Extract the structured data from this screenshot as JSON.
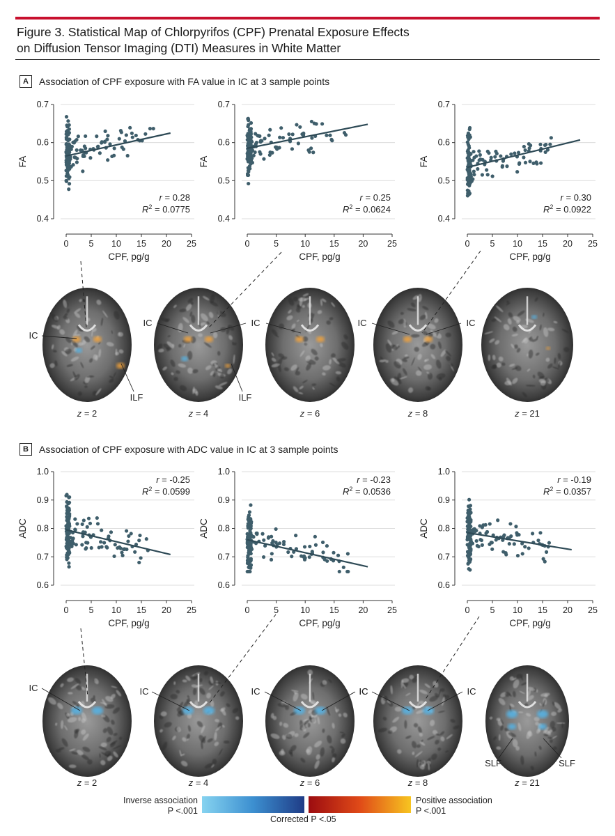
{
  "figure": {
    "title_line1": "Figure 3. Statistical Map of Chlorpyrifos (CPF) Prenatal Exposure Effects",
    "title_line2": "on Diffusion Tensor Imaging (DTI) Measures in White Matter",
    "accent_color": "#c8102e"
  },
  "panelA": {
    "label": "A",
    "heading": "Association of CPF exposure with FA value in IC at 3 sample points",
    "slices": [
      {
        "z": "2",
        "labels": [
          "IC",
          "ILF"
        ]
      },
      {
        "z": "4",
        "labels": [
          "IC",
          "ILF"
        ]
      },
      {
        "z": "6",
        "labels": [
          "IC",
          "IC"
        ]
      },
      {
        "z": "8",
        "labels": [
          "IC",
          "IC"
        ]
      },
      {
        "z": "21",
        "labels": []
      }
    ]
  },
  "panelB": {
    "label": "B",
    "heading": "Association of CPF exposure with ADC value in IC at 3 sample points",
    "slices": [
      {
        "z": "2",
        "labels": [
          "IC"
        ]
      },
      {
        "z": "4",
        "labels": [
          "IC"
        ]
      },
      {
        "z": "6",
        "labels": [
          "IC",
          "IC"
        ]
      },
      {
        "z": "8",
        "labels": [
          "IC",
          "IC"
        ]
      },
      {
        "z": "21",
        "labels": [
          "SLF",
          "SLF"
        ]
      }
    ]
  },
  "slice_prefix": "z = ",
  "legend": {
    "inverse_label": "Inverse association",
    "inverse_p": "P <.001",
    "positive_label": "Positive association",
    "positive_p": "P <.001",
    "corrected": "Corrected P <.05",
    "inverse_colors": [
      "#86d3f0",
      "#3c8fd0",
      "#1f3c86"
    ],
    "positive_colors": [
      "#9c0c10",
      "#e04a18",
      "#f7c520"
    ]
  },
  "chart_data": [
    {
      "type": "scatter",
      "panel": "A",
      "xlabel": "CPF, pg/g",
      "ylabel": "FA",
      "xlim": [
        0,
        25
      ],
      "ylim": [
        0.4,
        0.7
      ],
      "xticks": [
        0,
        5,
        10,
        15,
        20,
        25
      ],
      "yticks": [
        0.4,
        0.5,
        0.6,
        0.7
      ],
      "r": "0.28",
      "r2": "0.0775",
      "annotation_pos": "bottom-right",
      "fit": {
        "x": [
          0,
          20.8
        ],
        "y": [
          0.565,
          0.625
        ]
      },
      "seed": 11,
      "n_near0": 95,
      "n_far": 70
    },
    {
      "type": "scatter",
      "panel": "A",
      "xlabel": "CPF, pg/g",
      "ylabel": "FA",
      "xlim": [
        0,
        25
      ],
      "ylim": [
        0.4,
        0.7
      ],
      "xticks": [
        0,
        5,
        10,
        15,
        20,
        25
      ],
      "yticks": [
        0.4,
        0.5,
        0.6,
        0.7
      ],
      "r": "0.25",
      "r2": "0.0624",
      "annotation_pos": "bottom-right",
      "fit": {
        "x": [
          0,
          20.8
        ],
        "y": [
          0.585,
          0.648
        ]
      },
      "seed": 23,
      "n_near0": 95,
      "n_far": 70
    },
    {
      "type": "scatter",
      "panel": "A",
      "xlabel": "CPF, pg/g",
      "ylabel": "FA",
      "xlim": [
        0,
        25
      ],
      "ylim": [
        0.4,
        0.7
      ],
      "xticks": [
        0,
        5,
        10,
        15,
        20,
        25
      ],
      "yticks": [
        0.4,
        0.5,
        0.6,
        0.7
      ],
      "r": "0.30",
      "r2": "0.0922",
      "annotation_pos": "bottom-right",
      "fit": {
        "x": [
          0,
          22.5
        ],
        "y": [
          0.535,
          0.607
        ]
      },
      "seed": 37,
      "n_near0": 95,
      "n_far": 70
    },
    {
      "type": "scatter",
      "panel": "B",
      "xlabel": "CPF, pg/g",
      "ylabel": "ADC",
      "xlim": [
        0,
        25
      ],
      "ylim": [
        0.6,
        1.0
      ],
      "xticks": [
        0,
        5,
        10,
        15,
        20,
        25
      ],
      "yticks": [
        0.6,
        0.7,
        0.8,
        0.9,
        1.0
      ],
      "r": "-0.25",
      "r2": "0.0599",
      "annotation_pos": "top-right",
      "fit": {
        "x": [
          0,
          20.8
        ],
        "y": [
          0.795,
          0.708
        ]
      },
      "seed": 51,
      "n_near0": 95,
      "n_far": 70
    },
    {
      "type": "scatter",
      "panel": "B",
      "xlabel": "CPF, pg/g",
      "ylabel": "ADC",
      "xlim": [
        0,
        25
      ],
      "ylim": [
        0.6,
        1.0
      ],
      "xticks": [
        0,
        5,
        10,
        15,
        20,
        25
      ],
      "yticks": [
        0.6,
        0.7,
        0.8,
        0.9,
        1.0
      ],
      "r": "-0.23",
      "r2": "0.0536",
      "annotation_pos": "top-right",
      "fit": {
        "x": [
          0,
          20.8
        ],
        "y": [
          0.76,
          0.665
        ]
      },
      "seed": 67,
      "n_near0": 95,
      "n_far": 70
    },
    {
      "type": "scatter",
      "panel": "B",
      "xlabel": "CPF, pg/g",
      "ylabel": "ADC",
      "xlim": [
        0,
        25
      ],
      "ylim": [
        0.6,
        1.0
      ],
      "xticks": [
        0,
        5,
        10,
        15,
        20,
        25
      ],
      "yticks": [
        0.6,
        0.7,
        0.8,
        0.9,
        1.0
      ],
      "r": "-0.19",
      "r2": "0.0357",
      "annotation_pos": "top-right",
      "fit": {
        "x": [
          0,
          20.8
        ],
        "y": [
          0.785,
          0.725
        ]
      },
      "seed": 83,
      "n_near0": 95,
      "n_far": 70
    }
  ]
}
